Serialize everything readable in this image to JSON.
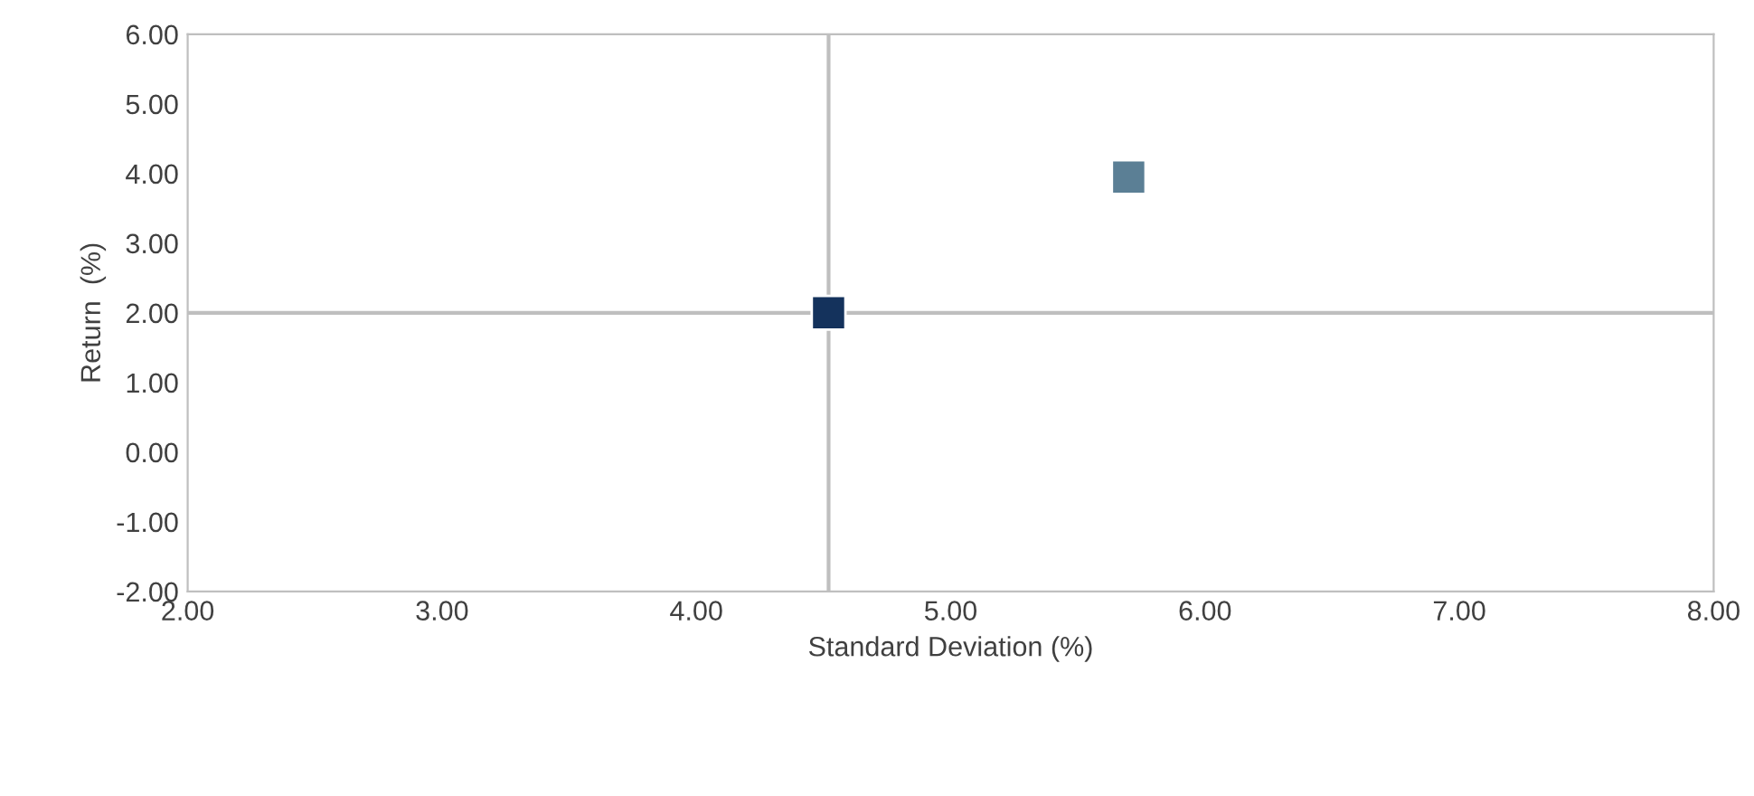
{
  "chart_data": {
    "type": "scatter",
    "xlabel": "Standard Deviation (%)",
    "ylabel": "Return  (%)",
    "series": [
      {
        "color": "#5b7f95",
        "x": [
          5.7
        ],
        "values": [
          3.95
        ]
      },
      {
        "color": "#14325c",
        "x": [
          4.52
        ],
        "values": [
          2.0
        ]
      }
    ],
    "marker": "square",
    "xlim": [
      2,
      8
    ],
    "xticks": [
      {
        "value": 2,
        "label": "2.00"
      },
      {
        "value": 3,
        "label": "3.00"
      },
      {
        "value": 4,
        "label": "4.00"
      },
      {
        "value": 5,
        "label": "5.00"
      },
      {
        "value": 6,
        "label": "6.00"
      },
      {
        "value": 7,
        "label": "7.00"
      },
      {
        "value": 8,
        "label": "8.00"
      }
    ],
    "ylim": [
      -2,
      6
    ],
    "yticks": [
      {
        "value": -2,
        "label": "-2.00"
      },
      {
        "value": -1,
        "label": "-1.00"
      },
      {
        "value": 0,
        "label": "0.00"
      },
      {
        "value": 1,
        "label": "1.00"
      },
      {
        "value": 2,
        "label": "2.00"
      },
      {
        "value": 3,
        "label": "3.00"
      },
      {
        "value": 4,
        "label": "4.00"
      },
      {
        "value": 5,
        "label": "5.00"
      },
      {
        "value": 6,
        "label": "6.00"
      }
    ],
    "ref_lines": [
      {
        "axis": "x",
        "value": 4.52,
        "color": "#bfbfbf"
      },
      {
        "axis": "y",
        "value": 2.0,
        "color": "#bfbfbf"
      }
    ],
    "grid": false
  }
}
